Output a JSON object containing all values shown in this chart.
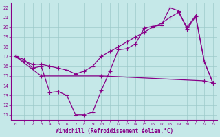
{
  "xlabel": "Windchill (Refroidissement éolien,°C)",
  "xlim": [
    -0.5,
    23.5
  ],
  "ylim": [
    10.5,
    22.5
  ],
  "yticks": [
    11,
    12,
    13,
    14,
    15,
    16,
    17,
    18,
    19,
    20,
    21,
    22
  ],
  "xticks": [
    0,
    1,
    2,
    3,
    4,
    5,
    6,
    7,
    8,
    9,
    10,
    11,
    12,
    13,
    14,
    15,
    16,
    17,
    18,
    19,
    20,
    21,
    22,
    23
  ],
  "background_color": "#c5e8e8",
  "grid_color": "#9dcaca",
  "line_color": "#880088",
  "line1_x": [
    0,
    1,
    2,
    3,
    4,
    5,
    6,
    7,
    8,
    9,
    10,
    11,
    12,
    13,
    14,
    15,
    16,
    17,
    18,
    19,
    20,
    21,
    22,
    23
  ],
  "line1_y": [
    17.0,
    16.7,
    15.8,
    16.0,
    13.3,
    13.4,
    13.0,
    11.0,
    11.0,
    11.3,
    13.5,
    15.5,
    17.7,
    17.8,
    18.3,
    19.9,
    20.1,
    20.2,
    22.0,
    21.7,
    19.8,
    21.1,
    16.5,
    14.3
  ],
  "line2_x": [
    0,
    3,
    10,
    22,
    23
  ],
  "line2_y": [
    17.0,
    15.0,
    15.0,
    14.5,
    14.3
  ],
  "line3_x": [
    0,
    1,
    2,
    3,
    4,
    5,
    6,
    7,
    8,
    9,
    10,
    11,
    12,
    13,
    14,
    15,
    16,
    17,
    18,
    19,
    20,
    21,
    22,
    23
  ],
  "line3_y": [
    17.0,
    16.5,
    16.2,
    16.2,
    16.0,
    15.8,
    15.6,
    15.2,
    15.5,
    16.0,
    17.0,
    17.5,
    18.0,
    18.5,
    19.0,
    19.5,
    20.0,
    20.4,
    21.0,
    21.5,
    20.0,
    21.2,
    16.5,
    14.3
  ],
  "markersize": 3
}
